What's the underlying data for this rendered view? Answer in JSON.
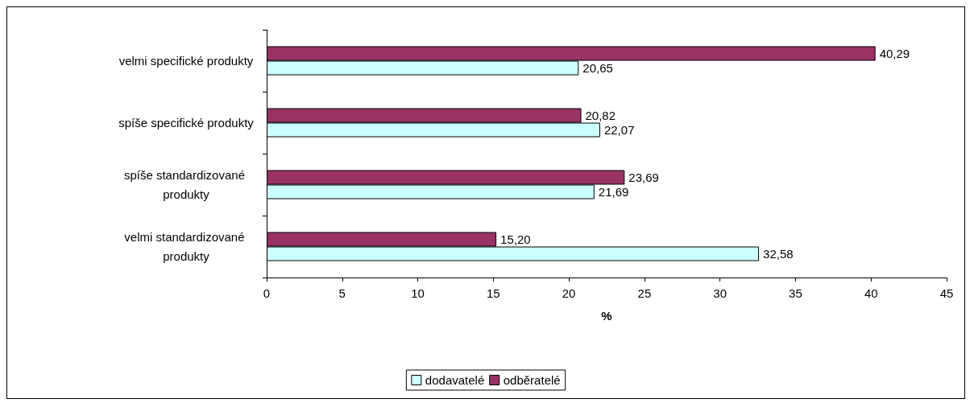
{
  "chart_data": {
    "type": "bar",
    "orientation": "horizontal",
    "xlabel": "%",
    "categories": [
      "velmi specifické produkty",
      "spíše specifické produkty",
      "spíše standardizované produkty",
      "velmi standardizované produkty"
    ],
    "series": [
      {
        "name": "dodavatelé",
        "color": "#ccffff",
        "values": [
          20.65,
          22.07,
          21.69,
          32.58
        ],
        "value_labels": [
          "20,65",
          "22,07",
          "21,69",
          "32,58"
        ]
      },
      {
        "name": "odběratelé",
        "color": "#993366",
        "values": [
          40.29,
          20.82,
          23.69,
          15.2
        ],
        "value_labels": [
          "40,29",
          "20,82",
          "23,69",
          "15,20"
        ]
      }
    ],
    "xlim": [
      0,
      45
    ],
    "xticks": [
      0,
      5,
      10,
      15,
      20,
      25,
      30,
      35,
      40,
      45
    ],
    "grid": false,
    "legend": "bottom"
  }
}
